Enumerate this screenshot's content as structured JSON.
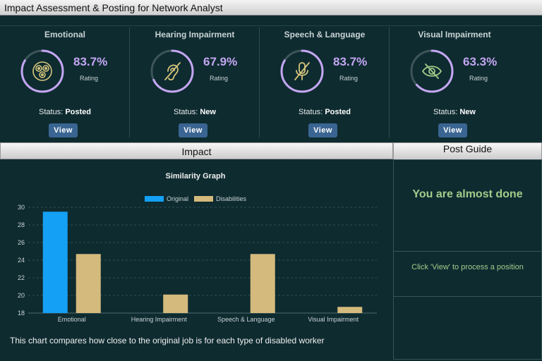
{
  "window": {
    "title": "Impact Assessment & Posting for Network Analyst"
  },
  "colors": {
    "ring": "#c4a6f2",
    "original": "#14a0f5",
    "disabilities": "#d4ba7c",
    "accent_green": "#a3cc8a",
    "view_button": "#3a6592"
  },
  "cards": [
    {
      "title": "Emotional",
      "percent": "83.7%",
      "rating_label": "Rating",
      "status_label": "Status:",
      "status": "Posted",
      "view_label": "View",
      "icon": "emotion-icon",
      "value": 0.837
    },
    {
      "title": "Hearing Impairment",
      "percent": "67.9%",
      "rating_label": "Rating",
      "status_label": "Status:",
      "status": "New",
      "view_label": "View",
      "icon": "ear-slash-icon",
      "value": 0.679
    },
    {
      "title": "Speech & Language",
      "percent": "83.7%",
      "rating_label": "Rating",
      "status_label": "Status:",
      "status": "Posted",
      "view_label": "View",
      "icon": "mic-slash-icon",
      "value": 0.837
    },
    {
      "title": "Visual Impairment",
      "percent": "63.3%",
      "rating_label": "Rating",
      "status_label": "Status:",
      "status": "New",
      "view_label": "View",
      "icon": "eye-slash-icon",
      "value": 0.633
    }
  ],
  "impact": {
    "header": "Impact",
    "caption": "This chart compares how close to the original job is for each type of disabled worker"
  },
  "guide": {
    "header": "Post Guide",
    "message": "You are almost done",
    "instruction": "Click 'View' to process a position"
  },
  "chart_data": {
    "type": "bar",
    "title": "Similarity Graph",
    "categories": [
      "Emotional",
      "Hearing Impairment",
      "Speech & Language",
      "Visual Impairment"
    ],
    "series": [
      {
        "name": "Original",
        "values": [
          29.5,
          null,
          null,
          null
        ]
      },
      {
        "name": "Disabilities",
        "values": [
          24.7,
          20.1,
          24.7,
          18.7
        ]
      }
    ],
    "ylim": [
      18,
      30
    ],
    "yticks": [
      18,
      20,
      22,
      24,
      26,
      28,
      30
    ],
    "legend": "top",
    "grid": true
  }
}
